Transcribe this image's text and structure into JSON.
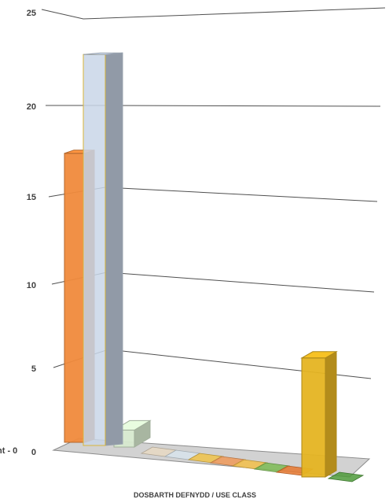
{
  "chart_data": {
    "type": "bar",
    "style": "3d-perspective",
    "xlabel": "DOSBARTH DEFNYDD / USE CLASS",
    "ylabel": "",
    "ylim": [
      0,
      25
    ],
    "y_ticks": [
      "0",
      "5",
      "10",
      "15",
      "20",
      "25"
    ],
    "grid": true,
    "partial_left_label": "nt - 0",
    "bars": [
      {
        "index": 1,
        "value": 17,
        "color": "#F08A3C"
      },
      {
        "index": 2,
        "value": 23,
        "color": "#C9D6E8"
      },
      {
        "index": 3,
        "value": 1,
        "color": "#D7E9CF"
      },
      {
        "index": 4,
        "value": 0,
        "color": "#E8D9C3"
      },
      {
        "index": 5,
        "value": 0,
        "color": "#D8E4EC"
      },
      {
        "index": 6,
        "value": 0,
        "color": "#F0C34A"
      },
      {
        "index": 7,
        "value": 0,
        "color": "#F09A5A"
      },
      {
        "index": 8,
        "value": 0,
        "color": "#F3C04A"
      },
      {
        "index": 9,
        "value": 0,
        "color": "#7DBB55"
      },
      {
        "index": 10,
        "value": 0,
        "color": "#E8782F"
      },
      {
        "index": 11,
        "value": 7,
        "color": "#E5B422"
      },
      {
        "index": 12,
        "value": 0,
        "color": "#4E9A3A"
      }
    ]
  }
}
